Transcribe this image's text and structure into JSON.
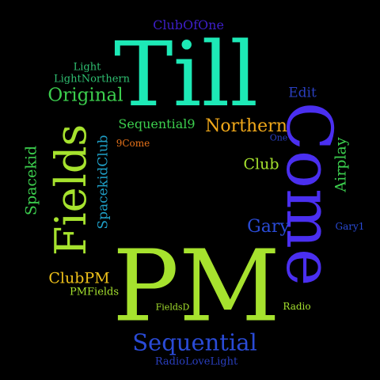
{
  "words": [
    {
      "id": "till",
      "text": "Till",
      "color": "#1de9b6"
    },
    {
      "id": "pm",
      "text": "PM",
      "color": "#a6e22e"
    },
    {
      "id": "come",
      "text": "Come",
      "color": "#4a2ff0"
    },
    {
      "id": "fields",
      "text": "Fields",
      "color": "#a6e22e"
    },
    {
      "id": "sequential",
      "text": "Sequential",
      "color": "#2a4bd7"
    },
    {
      "id": "clubofone",
      "text": "ClubOfOne",
      "color": "#3d1fc9"
    },
    {
      "id": "light",
      "text": "Light",
      "color": "#2fbf71"
    },
    {
      "id": "lightnorthern",
      "text": "LightNorthern",
      "color": "#2fbf71"
    },
    {
      "id": "original",
      "text": "Original",
      "color": "#3ccf4e"
    },
    {
      "id": "edit",
      "text": "Edit",
      "color": "#2a3fc0"
    },
    {
      "id": "sequential9",
      "text": "Sequential9",
      "color": "#3ccf4e"
    },
    {
      "id": "northern",
      "text": "Northern",
      "color": "#f0a81a"
    },
    {
      "id": "one",
      "text": "One",
      "color": "#2a3fc0"
    },
    {
      "id": "ninecome",
      "text": "9Come",
      "color": "#e8731a"
    },
    {
      "id": "spacekid",
      "text": "Spacekid",
      "color": "#3ccf4e"
    },
    {
      "id": "spacekidclub",
      "text": "SpacekidClub",
      "color": "#1fa0c8"
    },
    {
      "id": "club",
      "text": "Club",
      "color": "#a6e22e"
    },
    {
      "id": "airplay",
      "text": "Airplay",
      "color": "#3ccf4e"
    },
    {
      "id": "gary",
      "text": "Gary",
      "color": "#2a4bd7"
    },
    {
      "id": "gary1",
      "text": "Gary1",
      "color": "#2a4bd7"
    },
    {
      "id": "clubpm",
      "text": "ClubPM",
      "color": "#f0c21a"
    },
    {
      "id": "pmfields",
      "text": "PMFields",
      "color": "#a6e22e"
    },
    {
      "id": "fieldsd",
      "text": "FieldsD",
      "color": "#a6e22e"
    },
    {
      "id": "radio",
      "text": "Radio",
      "color": "#a6e22e"
    },
    {
      "id": "radiolovelight",
      "text": "RadioLoveLight",
      "color": "#2a3fc0"
    }
  ]
}
